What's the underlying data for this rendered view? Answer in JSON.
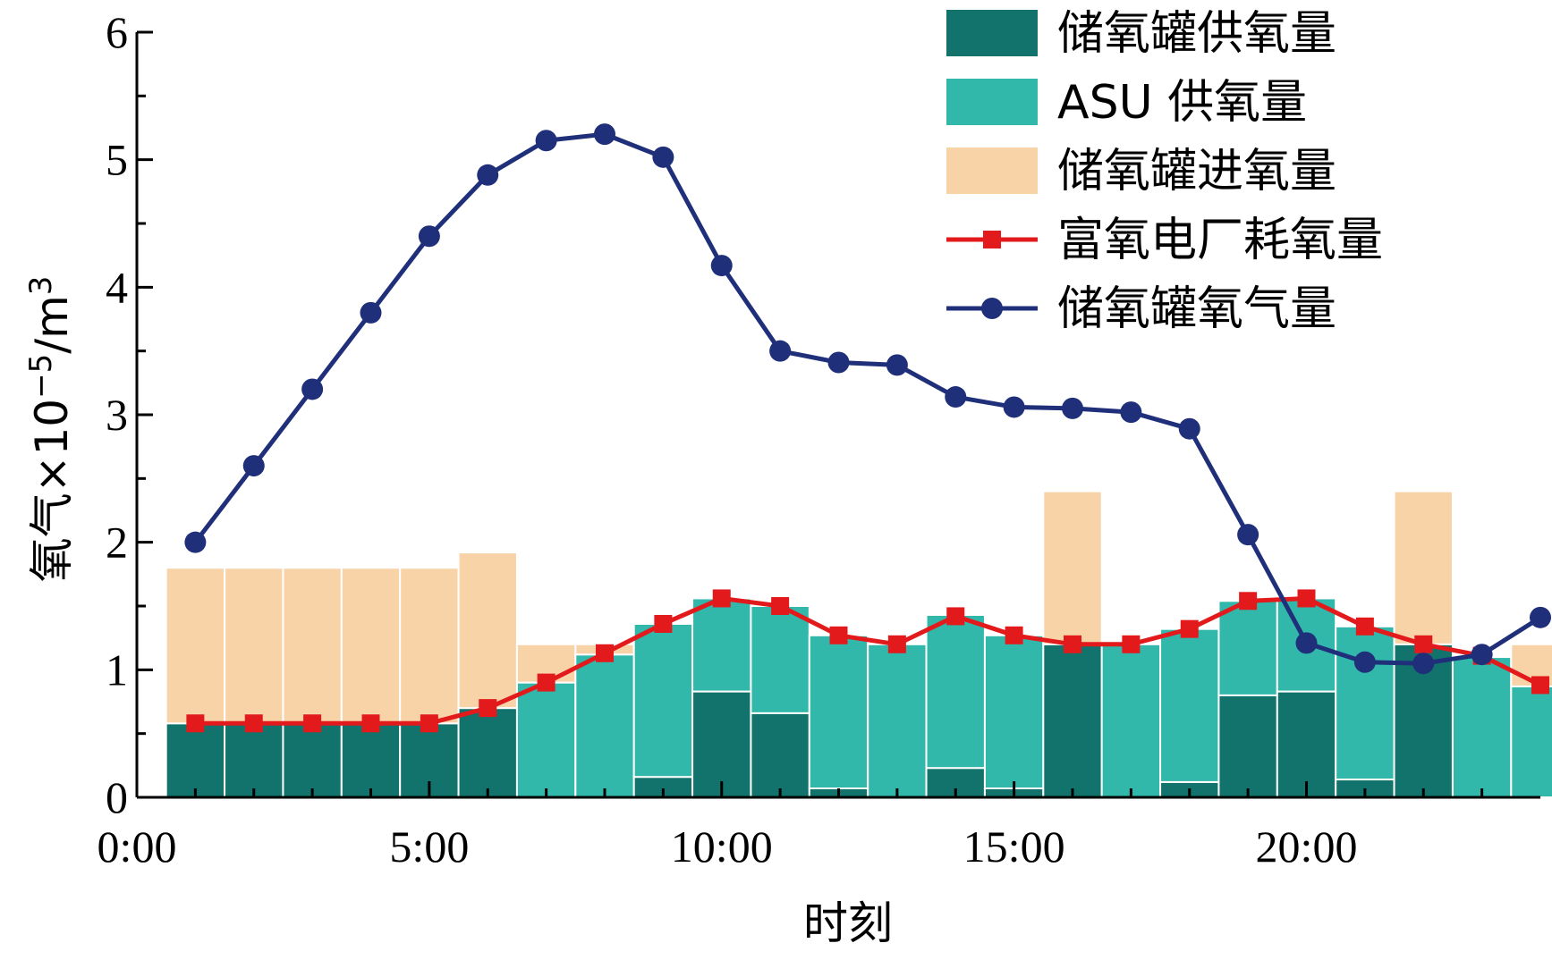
{
  "chart_data": {
    "type": "bar",
    "xlabel": "时刻",
    "ylabel_main": "氧气×10",
    "ylabel_exp": "−5",
    "ylabel_unit": "/m",
    "ylabel_unit_exp": "3",
    "xlim": [
      0,
      24
    ],
    "ylim": [
      0,
      6
    ],
    "x_ticks": [
      0,
      5,
      10,
      15,
      20
    ],
    "x_tick_labels": [
      "0:00",
      "5:00",
      "10:00",
      "15:00",
      "20:00"
    ],
    "y_ticks": [
      0,
      1,
      2,
      3,
      4,
      5,
      6
    ],
    "y_tick_labels": [
      "0",
      "1",
      "2",
      "3",
      "4",
      "5",
      "6"
    ],
    "grid": false,
    "legend_position": "top-right",
    "x": [
      1,
      2,
      3,
      4,
      5,
      6,
      7,
      8,
      9,
      10,
      11,
      12,
      13,
      14,
      15,
      16,
      17,
      18,
      19,
      20,
      21,
      22,
      23,
      24
    ],
    "series": [
      {
        "name": "储氧罐供氧量",
        "kind": "bar",
        "color": "#11736b",
        "values": [
          0.58,
          0.58,
          0.58,
          0.58,
          0.58,
          0.7,
          0,
          0,
          0.16,
          0.83,
          0.66,
          0.07,
          0,
          0.23,
          0.07,
          1.2,
          0,
          0.12,
          0.8,
          0.83,
          0.14,
          1.2,
          0,
          0
        ]
      },
      {
        "name": "ASU 供氧量",
        "kind": "bar",
        "color": "#31b8ab",
        "values": [
          0,
          0,
          0,
          0,
          0,
          0,
          0.9,
          1.12,
          1.2,
          0.73,
          0.84,
          1.2,
          1.2,
          1.2,
          1.2,
          0,
          1.2,
          1.2,
          0.74,
          0.73,
          1.2,
          0,
          1.1,
          0.87
        ]
      },
      {
        "name": "储氧罐进氧量",
        "kind": "bar",
        "color": "#f8d3a8",
        "values": [
          1.22,
          1.22,
          1.22,
          1.22,
          1.22,
          1.22,
          0.3,
          0.08,
          0,
          0,
          0,
          0,
          0,
          0,
          0,
          1.2,
          0,
          0,
          0,
          0,
          0,
          1.2,
          0,
          0.33
        ]
      },
      {
        "name": "富氧电厂耗氧量",
        "kind": "line",
        "marker": "square",
        "color": "#e31a1c",
        "values": [
          0.58,
          0.58,
          0.58,
          0.58,
          0.58,
          0.7,
          0.9,
          1.13,
          1.36,
          1.56,
          1.5,
          1.27,
          1.2,
          1.42,
          1.27,
          1.2,
          1.2,
          1.32,
          1.54,
          1.56,
          1.34,
          1.2,
          1.11,
          0.88
        ]
      },
      {
        "name": "储氧罐氧气量",
        "kind": "line",
        "marker": "circle",
        "color": "#1f2f7a",
        "values": [
          2.0,
          2.6,
          3.2,
          3.8,
          4.4,
          4.88,
          5.15,
          5.2,
          5.02,
          4.17,
          3.5,
          3.41,
          3.39,
          3.14,
          3.06,
          3.05,
          3.02,
          2.89,
          2.06,
          1.21,
          1.06,
          1.05,
          1.12,
          1.41
        ]
      }
    ]
  }
}
